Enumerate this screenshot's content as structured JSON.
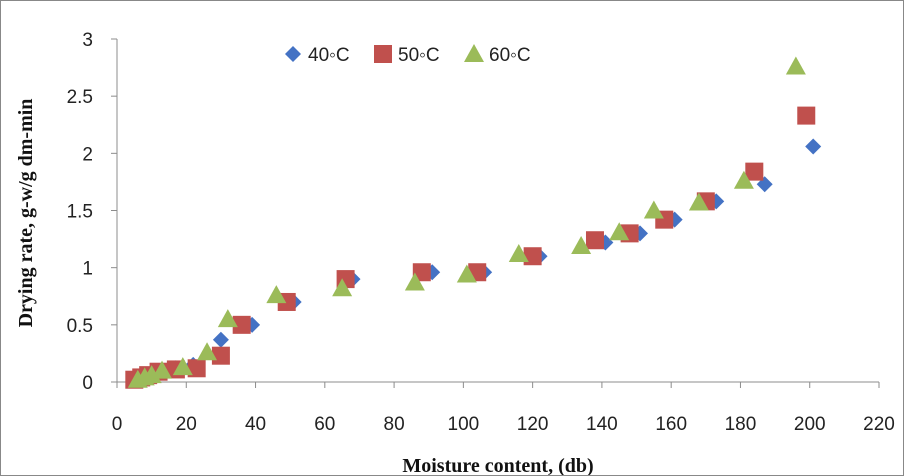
{
  "chart_data": {
    "type": "scatter",
    "title": "",
    "xlabel": "Moisture content, (db)",
    "ylabel": "Drying rate, g-w/g dm-min",
    "xlim": [
      0,
      220
    ],
    "ylim": [
      0,
      3
    ],
    "xticks": [
      0,
      20,
      40,
      60,
      80,
      100,
      120,
      140,
      160,
      180,
      200,
      220
    ],
    "yticks": [
      "0",
      "0.5",
      "1",
      "1.5",
      "2",
      "2.5",
      "3"
    ],
    "grid": false,
    "legend_position": "top-center",
    "series": [
      {
        "name": "40◦C",
        "marker": "diamond",
        "color": "#4472C4",
        "points": [
          [
            6,
            0.02
          ],
          [
            8,
            0.04
          ],
          [
            10,
            0.06
          ],
          [
            13,
            0.09
          ],
          [
            17,
            0.12
          ],
          [
            22,
            0.15
          ],
          [
            30,
            0.37
          ],
          [
            39,
            0.5
          ],
          [
            51,
            0.7
          ],
          [
            68,
            0.9
          ],
          [
            91,
            0.96
          ],
          [
            106,
            0.96
          ],
          [
            122,
            1.1
          ],
          [
            141,
            1.22
          ],
          [
            151,
            1.3
          ],
          [
            161,
            1.42
          ],
          [
            173,
            1.58
          ],
          [
            187,
            1.73
          ],
          [
            201,
            2.06
          ]
        ]
      },
      {
        "name": "50◦C",
        "marker": "square",
        "color": "#C0504D",
        "points": [
          [
            5,
            0.02
          ],
          [
            7,
            0.04
          ],
          [
            9,
            0.06
          ],
          [
            12,
            0.09
          ],
          [
            17,
            0.11
          ],
          [
            23,
            0.12
          ],
          [
            30,
            0.23
          ],
          [
            36,
            0.5
          ],
          [
            49,
            0.7
          ],
          [
            66,
            0.9
          ],
          [
            88,
            0.96
          ],
          [
            104,
            0.96
          ],
          [
            120,
            1.1
          ],
          [
            138,
            1.24
          ],
          [
            148,
            1.3
          ],
          [
            158,
            1.42
          ],
          [
            170,
            1.58
          ],
          [
            184,
            1.84
          ],
          [
            199,
            2.33
          ]
        ]
      },
      {
        "name": "60◦C",
        "marker": "triangle",
        "color": "#9BBB59",
        "points": [
          [
            6,
            0.02
          ],
          [
            8,
            0.04
          ],
          [
            10,
            0.06
          ],
          [
            13,
            0.1
          ],
          [
            19,
            0.13
          ],
          [
            26,
            0.26
          ],
          [
            32,
            0.55
          ],
          [
            46,
            0.76
          ],
          [
            65,
            0.82
          ],
          [
            86,
            0.87
          ],
          [
            101,
            0.94
          ],
          [
            116,
            1.12
          ],
          [
            134,
            1.19
          ],
          [
            145,
            1.31
          ],
          [
            155,
            1.5
          ],
          [
            168,
            1.57
          ],
          [
            181,
            1.76
          ],
          [
            196,
            2.76
          ]
        ]
      }
    ]
  }
}
